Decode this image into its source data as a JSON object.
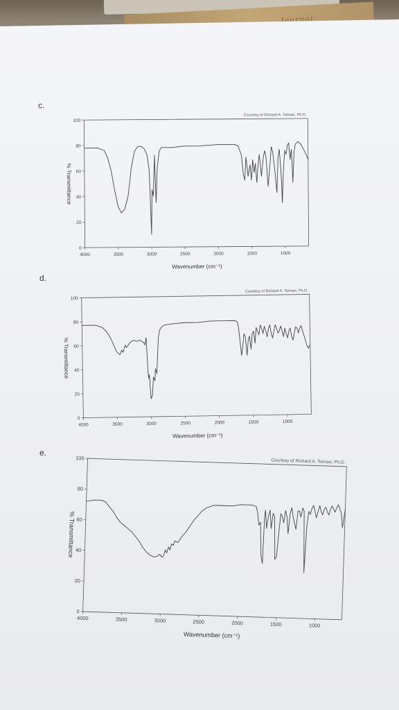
{
  "background": {
    "book_text": "Journal"
  },
  "chart_data": [
    {
      "type": "line",
      "panel_label": "c.",
      "courtesy": "Courtesy of Richard A. Tomasi, Ph.D.",
      "xlabel": "Wavenumber (cm⁻¹)",
      "ylabel": "% Transmittance",
      "x_ticks": [
        "4000",
        "3500",
        "3000",
        "2500",
        "2000",
        "1500",
        "1000"
      ],
      "y_ticks": [
        "0",
        "20",
        "40",
        "60",
        "80",
        "100"
      ],
      "xlim": [
        4000,
        650
      ],
      "ylim": [
        0,
        100
      ],
      "x": [
        4000,
        3800,
        3700,
        3650,
        3600,
        3550,
        3500,
        3450,
        3400,
        3350,
        3330,
        3300,
        3250,
        3200,
        3150,
        3100,
        3060,
        3030,
        3000,
        2990,
        2970,
        2950,
        2930,
        2910,
        2880,
        2860,
        2840,
        2800,
        2700,
        2500,
        2300,
        2000,
        1800,
        1750,
        1700,
        1650,
        1620,
        1600,
        1580,
        1550,
        1520,
        1500,
        1480,
        1460,
        1440,
        1420,
        1400,
        1380,
        1350,
        1320,
        1300,
        1280,
        1250,
        1220,
        1200,
        1180,
        1150,
        1120,
        1100,
        1080,
        1050,
        1040,
        1020,
        1000,
        980,
        960,
        940,
        920,
        900,
        880,
        860,
        840,
        800,
        760,
        700,
        650
      ],
      "y": [
        78,
        78,
        76,
        70,
        60,
        45,
        32,
        27,
        30,
        40,
        48,
        62,
        75,
        79,
        79,
        77,
        72,
        60,
        10,
        45,
        40,
        72,
        35,
        62,
        75,
        77,
        78,
        78,
        78,
        79,
        79,
        80,
        80,
        80,
        79,
        72,
        56,
        52,
        70,
        55,
        64,
        52,
        68,
        58,
        65,
        50,
        64,
        72,
        55,
        70,
        75,
        70,
        47,
        65,
        78,
        74,
        60,
        42,
        70,
        76,
        52,
        34,
        60,
        75,
        72,
        79,
        81,
        68,
        76,
        50,
        74,
        80,
        82,
        80,
        74,
        68
      ]
    },
    {
      "type": "line",
      "panel_label": "d.",
      "courtesy": "Courtesy of Richard A. Tomasi, Ph.D.",
      "xlabel": "Wavenumber (cm⁻¹)",
      "ylabel": "% Transmittance",
      "x_ticks": [
        "4000",
        "3500",
        "3000",
        "2500",
        "2000",
        "1500",
        "1000"
      ],
      "y_ticks": [
        "0",
        "20",
        "40",
        "60",
        "80",
        "100"
      ],
      "xlim": [
        4000,
        650
      ],
      "ylim": [
        0,
        100
      ],
      "x": [
        4000,
        3800,
        3700,
        3650,
        3600,
        3550,
        3500,
        3450,
        3420,
        3400,
        3370,
        3350,
        3300,
        3250,
        3200,
        3150,
        3100,
        3080,
        3060,
        3040,
        3030,
        3020,
        3000,
        2980,
        2960,
        2940,
        2930,
        2910,
        2880,
        2860,
        2840,
        2800,
        2700,
        2500,
        2300,
        2100,
        2000,
        1950,
        1900,
        1850,
        1800,
        1750,
        1720,
        1700,
        1680,
        1660,
        1640,
        1620,
        1600,
        1580,
        1560,
        1540,
        1520,
        1500,
        1480,
        1460,
        1440,
        1420,
        1400,
        1380,
        1360,
        1340,
        1320,
        1300,
        1280,
        1260,
        1240,
        1220,
        1200,
        1180,
        1160,
        1140,
        1120,
        1100,
        1080,
        1060,
        1040,
        1020,
        1000,
        980,
        960,
        940,
        920,
        900,
        880,
        860,
        840,
        820,
        800,
        780,
        760,
        740,
        720,
        700,
        680,
        650
      ],
      "y": [
        77,
        77,
        75,
        72,
        68,
        62,
        55,
        52,
        56,
        54,
        60,
        58,
        62,
        64,
        63,
        64,
        62,
        60,
        66,
        38,
        32,
        35,
        15,
        18,
        33,
        30,
        40,
        36,
        66,
        72,
        74,
        76,
        77,
        78,
        78,
        79,
        79,
        79,
        79,
        79,
        79,
        79,
        78,
        74,
        62,
        50,
        58,
        68,
        65,
        50,
        62,
        66,
        55,
        68,
        70,
        60,
        73,
        70,
        67,
        75,
        72,
        68,
        74,
        70,
        65,
        72,
        75,
        68,
        64,
        70,
        75,
        72,
        68,
        70,
        74,
        70,
        65,
        72,
        68,
        64,
        70,
        72,
        65,
        62,
        68,
        73,
        72,
        68,
        72,
        74,
        70,
        66,
        62,
        58,
        55,
        58
      ]
    },
    {
      "type": "line",
      "panel_label": "e.",
      "courtesy": "Courtesy of Richard A. Tomasi, Ph.D.",
      "xlabel": "Wavenumber (cm⁻¹)",
      "ylabel": "% Transmittance",
      "x_ticks": [
        "4000",
        "3500",
        "3000",
        "2500",
        "2000",
        "1500",
        "1000"
      ],
      "y_ticks": [
        "0",
        "20",
        "40",
        "60",
        "80",
        "100"
      ],
      "xlim": [
        4000,
        650
      ],
      "ylim": [
        0,
        100
      ],
      "x": [
        4000,
        3900,
        3800,
        3750,
        3700,
        3650,
        3600,
        3550,
        3500,
        3450,
        3400,
        3350,
        3300,
        3250,
        3200,
        3150,
        3100,
        3050,
        3030,
        3000,
        2980,
        2960,
        2940,
        2920,
        2900,
        2880,
        2860,
        2840,
        2800,
        2750,
        2700,
        2650,
        2600,
        2550,
        2500,
        2450,
        2400,
        2350,
        2300,
        2200,
        2100,
        2000,
        1950,
        1900,
        1850,
        1800,
        1780,
        1760,
        1740,
        1720,
        1700,
        1690,
        1680,
        1660,
        1640,
        1620,
        1600,
        1580,
        1560,
        1540,
        1520,
        1500,
        1480,
        1460,
        1440,
        1420,
        1400,
        1380,
        1360,
        1340,
        1320,
        1300,
        1280,
        1260,
        1240,
        1220,
        1200,
        1180,
        1160,
        1140,
        1120,
        1100,
        1080,
        1060,
        1040,
        1020,
        1000,
        980,
        960,
        940,
        920,
        900,
        880,
        860,
        840,
        820,
        800,
        780,
        760,
        740,
        720,
        700,
        680,
        660,
        650
      ],
      "y": [
        72,
        73,
        73,
        72,
        69,
        66,
        62,
        59,
        57,
        55,
        53,
        50,
        47,
        43,
        40,
        38,
        37,
        38,
        39,
        37,
        38,
        42,
        40,
        44,
        42,
        46,
        45,
        48,
        47,
        51,
        54,
        58,
        62,
        65,
        68,
        70,
        71,
        72,
        72,
        72,
        72,
        73,
        73,
        73,
        73,
        72,
        68,
        60,
        62,
        40,
        35,
        65,
        70,
        58,
        66,
        70,
        58,
        68,
        66,
        38,
        40,
        55,
        68,
        66,
        62,
        70,
        66,
        55,
        68,
        72,
        66,
        62,
        58,
        70,
        70,
        66,
        72,
        70,
        30,
        60,
        70,
        68,
        72,
        74,
        70,
        66,
        70,
        74,
        70,
        68,
        72,
        73,
        70,
        68,
        72,
        74,
        72,
        70,
        73,
        75,
        72,
        70,
        60,
        68,
        72
      ]
    }
  ]
}
